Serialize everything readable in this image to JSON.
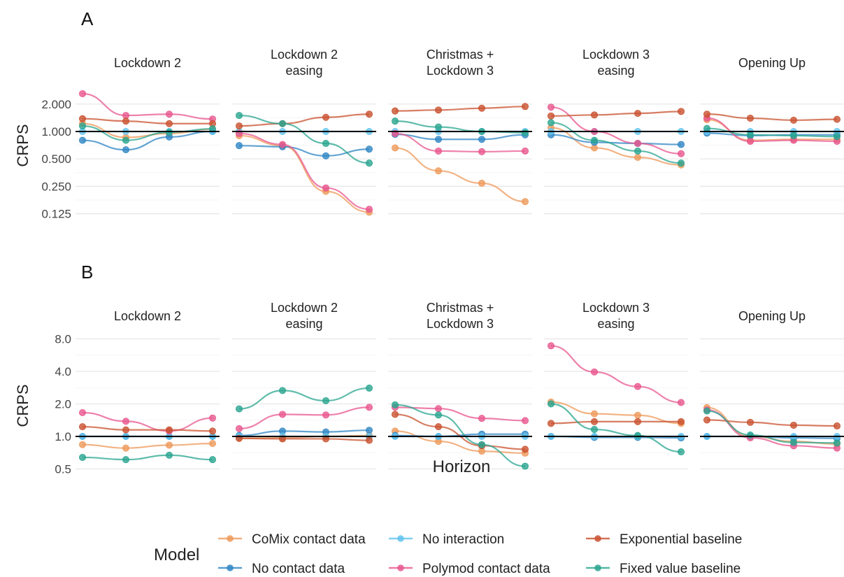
{
  "colors": {
    "CoMix contact data": "#ee9a5b",
    "No contact data": "#2f86c4",
    "No interaction": "#63c3ee",
    "Polymod contact data": "#e8578f",
    "Exponential baseline": "#c9512f",
    "Fixed value baseline": "#2aa590",
    "reference_line": "#000000",
    "grid": "#e8e8e8"
  },
  "xlabel": "Horizon",
  "legend": {
    "title": "Model",
    "position": "bottom",
    "entries": [
      "CoMix contact data",
      "No interaction",
      "Exponential baseline",
      "No contact data",
      "Polymod contact data",
      "Fixed value baseline"
    ]
  },
  "chart_data": [
    {
      "panel": "A",
      "type": "line",
      "ylabel": "CRPS",
      "yscale": "log2",
      "yticks": [
        "0.125",
        "0.250",
        "0.500",
        "1.000",
        "2.000"
      ],
      "ylim": [
        0.1,
        3.2
      ],
      "reference_line": 1.0,
      "grid": true,
      "x": [
        1,
        2,
        3,
        4
      ],
      "facets": [
        {
          "title": "Lockdown 2 easing",
          "label_lines": [
            "Lockdown 2"
          ],
          "series": []
        }
      ]
    }
  ]
}
